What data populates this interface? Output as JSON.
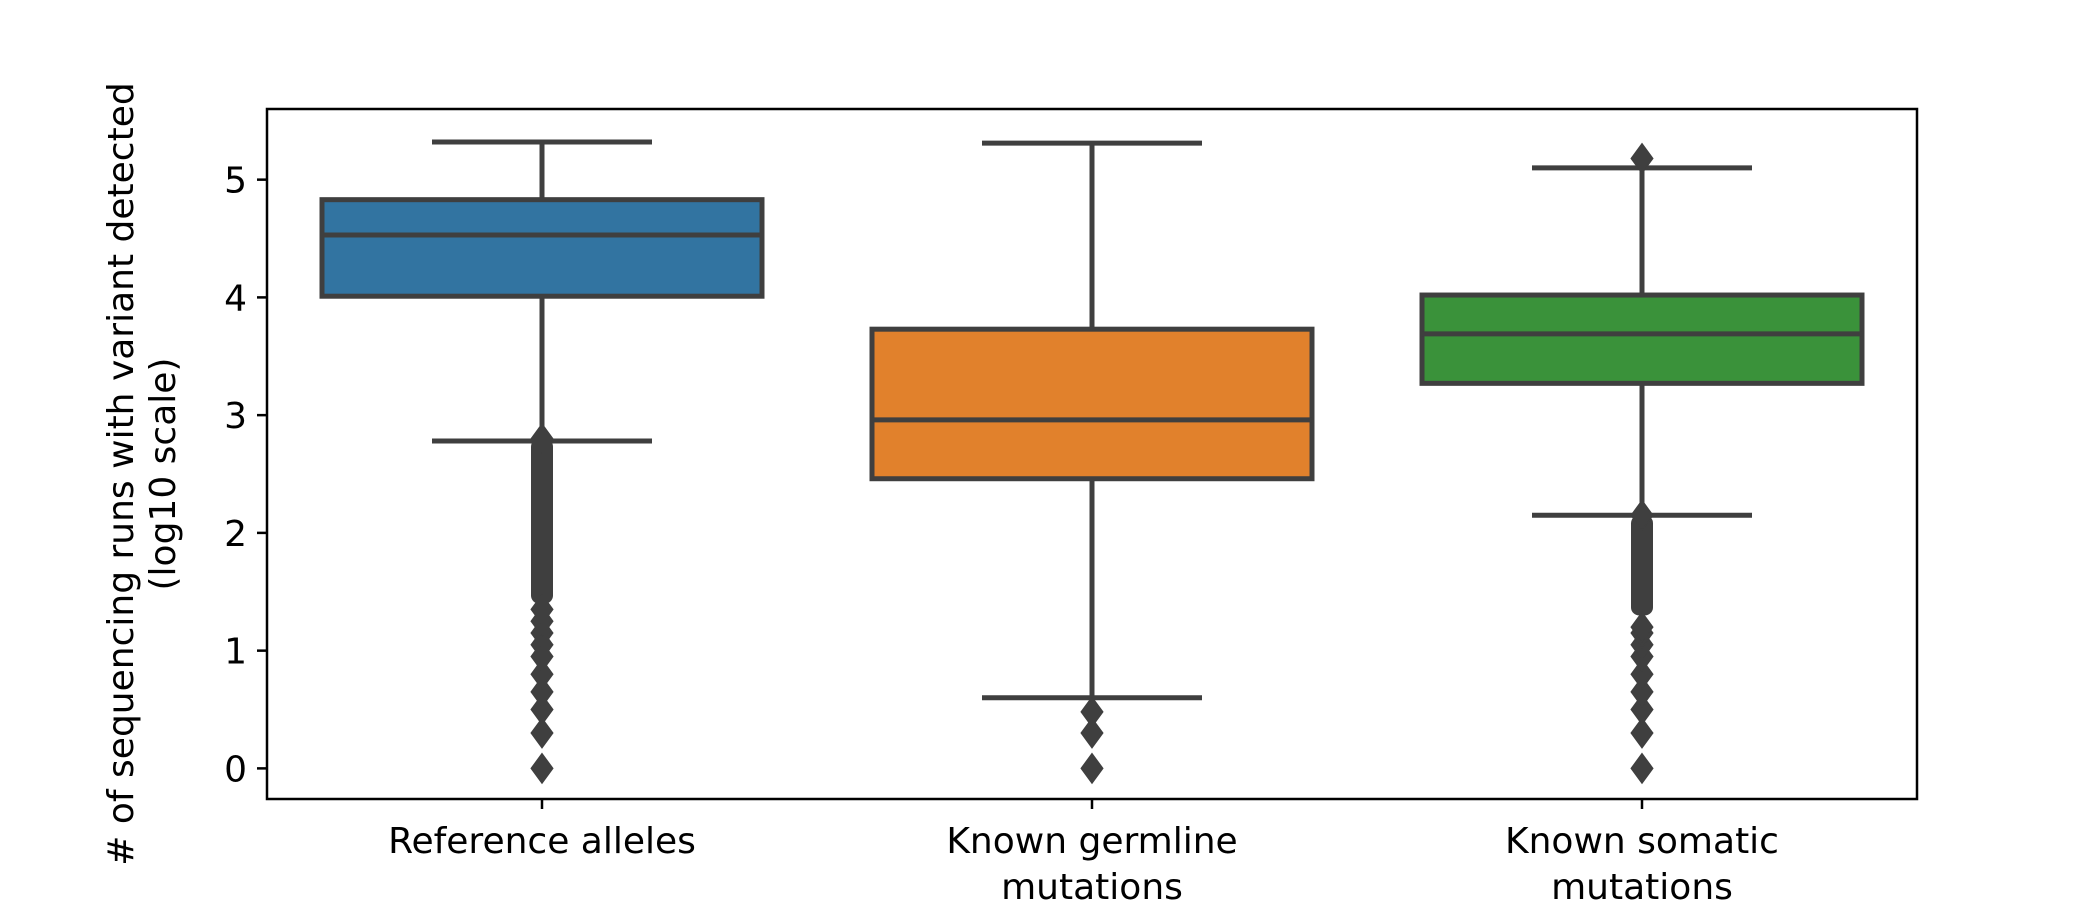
{
  "chart_data": {
    "type": "box",
    "title": "",
    "xlabel": "",
    "ylabel_lines": [
      "# of sequencing runs with variant detected",
      "(log10 scale)"
    ],
    "ylim": [
      -0.26,
      5.6
    ],
    "yticks": [
      0,
      1,
      2,
      3,
      4,
      5
    ],
    "ytick_labels": [
      "0",
      "1",
      "2",
      "3",
      "4",
      "5"
    ],
    "grid": false,
    "legend": "none",
    "categories": [
      {
        "label_lines": [
          "Reference alleles"
        ],
        "color": "#3274a1",
        "whisker_low": 2.78,
        "q1": 4.01,
        "median": 4.53,
        "q3": 4.83,
        "whisker_high": 5.32,
        "outliers_dense": [
          1.4,
          2.8
        ],
        "outliers": [
          0.0,
          0.3,
          0.5,
          0.65,
          0.8,
          0.95,
          1.05,
          1.15,
          1.25,
          1.35
        ]
      },
      {
        "label_lines": [
          "Known germline",
          "mutations"
        ],
        "color": "#e1812c",
        "whisker_low": 0.6,
        "q1": 2.46,
        "median": 2.96,
        "q3": 3.73,
        "whisker_high": 5.31,
        "outliers_dense": null,
        "outliers": [
          0.0,
          0.3,
          0.48
        ]
      },
      {
        "label_lines": [
          "Known somatic",
          "mutations"
        ],
        "color": "#3a923a",
        "whisker_low": 2.15,
        "q1": 3.27,
        "median": 3.69,
        "q3": 4.02,
        "whisker_high": 5.1,
        "outliers_dense": [
          1.3,
          2.15
        ],
        "outliers": [
          0.0,
          0.3,
          0.5,
          0.65,
          0.8,
          0.95,
          1.05,
          1.15,
          1.2,
          5.18
        ]
      }
    ]
  }
}
